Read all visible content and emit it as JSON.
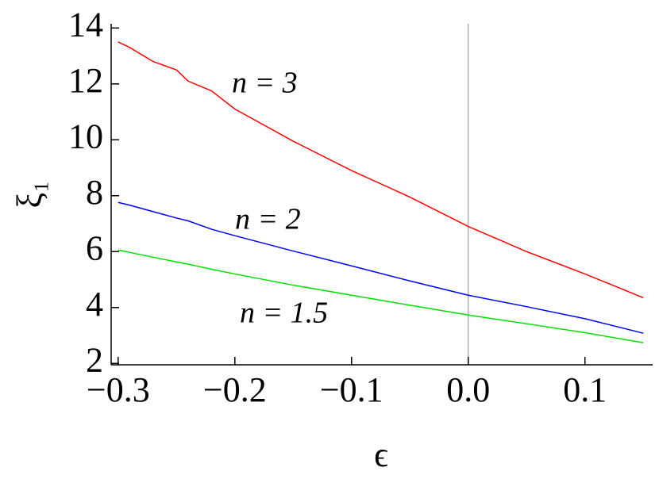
{
  "chart_data": {
    "type": "line",
    "x_label": "ϵ",
    "y_label": "ξ₁",
    "x": [
      -0.3,
      -0.29,
      -0.27,
      -0.25,
      -0.24,
      -0.22,
      -0.2,
      -0.15,
      -0.1,
      -0.05,
      0,
      0.05,
      0.1,
      0.15
    ],
    "series": [
      {
        "color": "#ff0000",
        "values": [
          13.5,
          13.3,
          12.8,
          12.5,
          12.1,
          11.75,
          11.1,
          9.95,
          8.9,
          7.95,
          6.9,
          6.0,
          5.2,
          4.35
        ]
      },
      {
        "color": "#0000ff",
        "values": [
          7.76,
          7.66,
          7.43,
          7.2,
          7.1,
          6.8,
          6.57,
          6.02,
          5.49,
          4.95,
          4.44,
          4.03,
          3.6,
          3.08
        ]
      },
      {
        "color": "#00e000",
        "values": [
          6.06,
          5.97,
          5.8,
          5.63,
          5.55,
          5.37,
          5.2,
          4.8,
          4.44,
          4.08,
          3.73,
          3.42,
          3.1,
          2.74
        ]
      }
    ],
    "annotations": [
      "n = 3",
      "n = 2",
      "n = 1.5"
    ],
    "xlim": [
      -0.306,
      0.158
    ],
    "ylim": [
      1.95,
      14.15
    ],
    "xticks": [
      {
        "value": -0.3,
        "label": "−0.3"
      },
      {
        "value": -0.2,
        "label": "−0.2"
      },
      {
        "value": -0.1,
        "label": "−0.1"
      },
      {
        "value": 0,
        "label": "0.0"
      },
      0.1
    ],
    "yticks": [
      2,
      4,
      6,
      8,
      10,
      12,
      14
    ],
    "reference_line_x": 0
  }
}
